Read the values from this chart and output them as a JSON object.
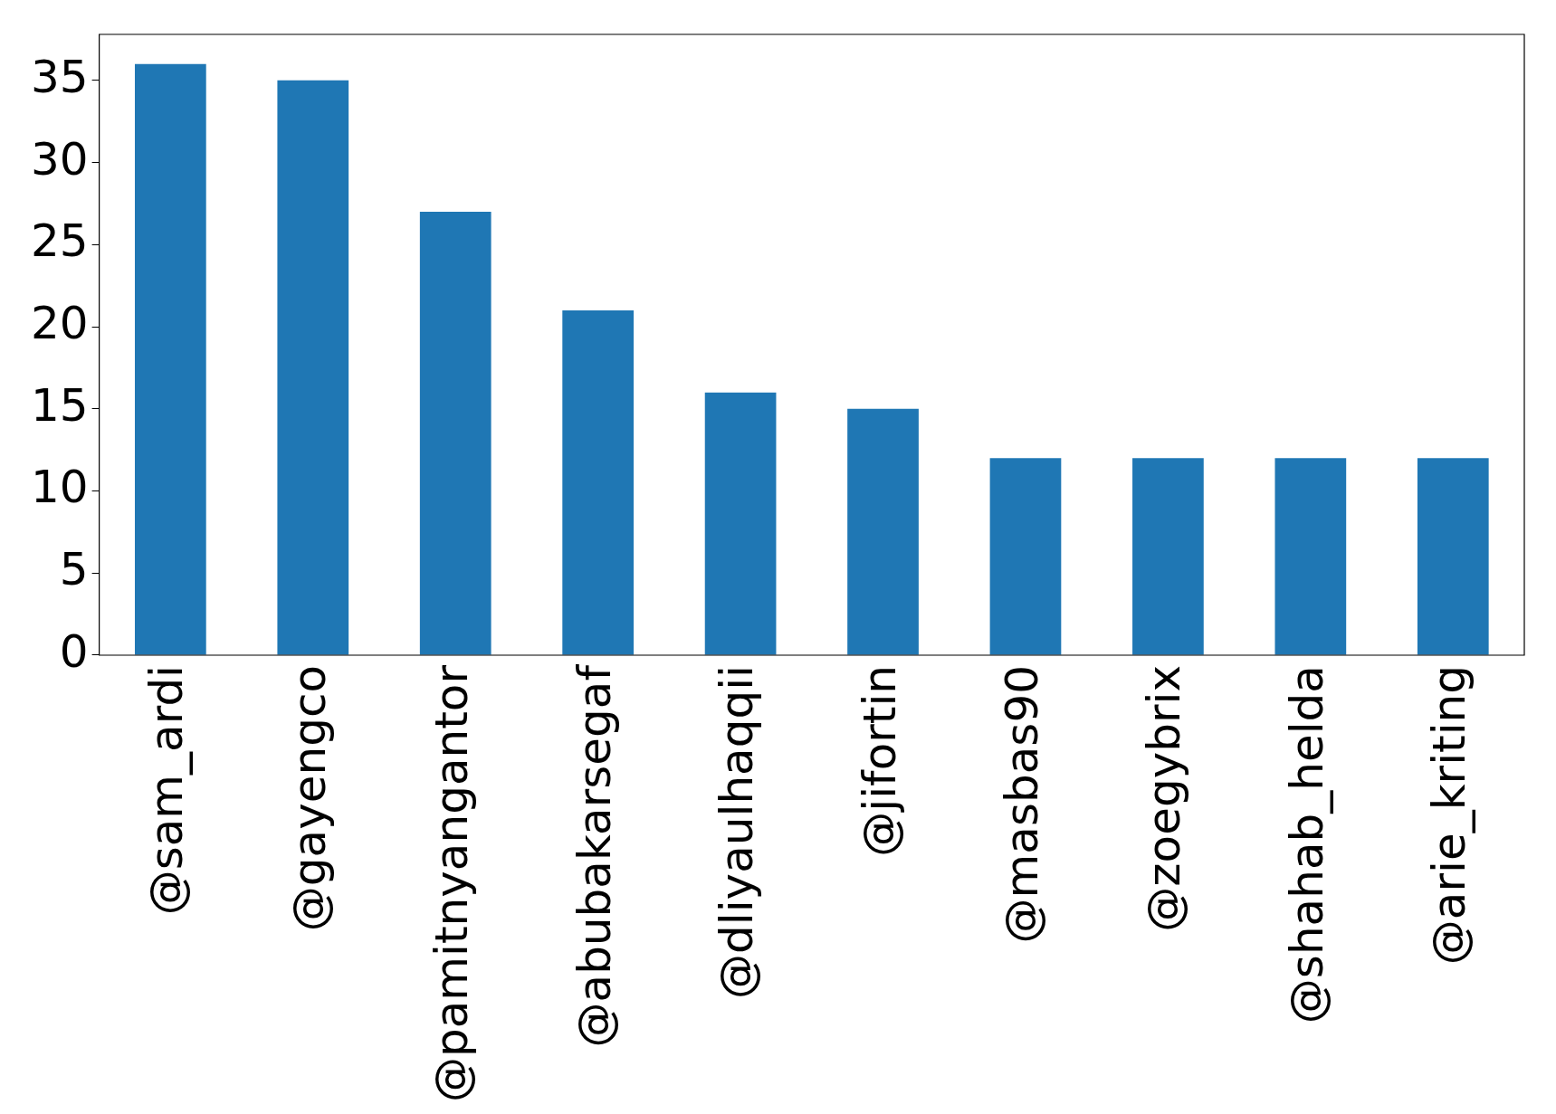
{
  "chart_data": {
    "type": "bar",
    "categories": [
      "@sam_ardi",
      "@gayengco",
      "@pamitnyangantor",
      "@abubakarsegaf",
      "@dliyaulhaqqii",
      "@jifortin",
      "@masbas90",
      "@zoegybrix",
      "@shahab_helda",
      "@arie_kriting"
    ],
    "values": [
      36,
      35,
      27,
      21,
      16,
      15,
      12,
      12,
      12,
      12
    ],
    "color": "#1f77b4",
    "ylim": [
      0,
      37.8
    ],
    "yticks": [
      0,
      5,
      10,
      15,
      20,
      25,
      30,
      35
    ],
    "grid": false,
    "legend": false
  }
}
